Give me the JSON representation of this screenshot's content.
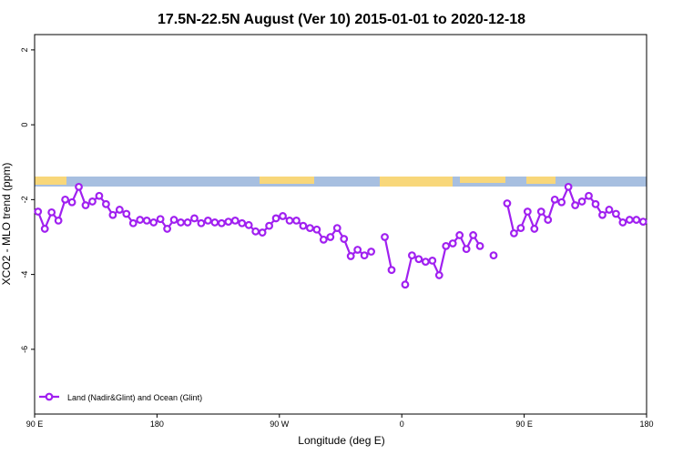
{
  "chart_data": {
    "type": "line",
    "title": "17.5N-22.5N August (Ver 10)   2015-01-01 to 2020-12-18",
    "xlabel": "Longitude (deg E)",
    "ylabel": "XCO2 - MLO trend (ppm)",
    "xlim": [
      90,
      540
    ],
    "ylim": [
      -7.73,
      2.41
    ],
    "xticks": [
      {
        "value": 90,
        "label": "90 E"
      },
      180,
      {
        "value": 270,
        "label": "90 W"
      },
      {
        "value": 360,
        "label": "0"
      },
      {
        "value": 450,
        "label": "90 E"
      },
      {
        "value": 540,
        "label": "180"
      }
    ],
    "yticks": [
      2,
      0,
      -2,
      -4,
      -6
    ],
    "legend": "bottom-left",
    "series": [
      {
        "name": "Land (Nadir&Glint) and Ocean (Glint)",
        "color": "#a020f0",
        "x": [
          92.5,
          97.5,
          102.5,
          107.5,
          112.5,
          117.5,
          122.5,
          127.5,
          132.5,
          137.5,
          142.5,
          147.5,
          152.5,
          157.5,
          162.5,
          167.5,
          172.5,
          177.5,
          182.5,
          187.5,
          192.5,
          197.5,
          202.5,
          207.5,
          212.5,
          217.5,
          222.5,
          227.5,
          232.5,
          237.5,
          242.5,
          247.5,
          252.5,
          257.5,
          262.5,
          267.5,
          272.5,
          277.5,
          282.5,
          287.5,
          292.5,
          297.5,
          302.5,
          307.5,
          312.5,
          317.5,
          322.5,
          327.5,
          332.5,
          337.5,
          342.5,
          347.5,
          352.5,
          357.5,
          362.5,
          367.5,
          372.5,
          377.5,
          382.5,
          387.5,
          392.5,
          397.5,
          402.5,
          407.5,
          412.5,
          417.5,
          422.5,
          427.5,
          432.5,
          437.5,
          442.5,
          447.5,
          452.5,
          457.5,
          462.5,
          467.5,
          472.5,
          477.5,
          482.5,
          487.5,
          492.5,
          497.5,
          502.5,
          507.5,
          512.5,
          517.5,
          522.5,
          527.5,
          532.5,
          537.5
        ],
        "values": [
          -2.32,
          -2.78,
          -2.34,
          -2.56,
          -2.0,
          -2.07,
          -1.66,
          -2.15,
          -2.05,
          -1.9,
          -2.12,
          -2.41,
          -2.27,
          -2.38,
          -2.63,
          -2.54,
          -2.56,
          -2.61,
          -2.52,
          -2.78,
          -2.54,
          -2.61,
          -2.61,
          -2.5,
          -2.63,
          -2.56,
          -2.61,
          -2.63,
          -2.59,
          -2.56,
          -2.63,
          -2.68,
          -2.85,
          -2.88,
          -2.7,
          -2.5,
          -2.44,
          -2.56,
          -2.56,
          -2.7,
          -2.76,
          -2.8,
          -3.07,
          -3.0,
          -2.76,
          -3.05,
          -3.51,
          -3.34,
          -3.49,
          -3.39,
          null,
          -3.0,
          -3.88,
          null,
          -4.27,
          -3.49,
          -3.59,
          -3.66,
          -3.63,
          -4.02,
          -3.24,
          -3.17,
          -2.95,
          -3.32,
          -2.95,
          -3.24,
          null,
          -3.49,
          null,
          -2.1,
          -2.9,
          -2.76,
          -2.32,
          -2.78,
          -2.32,
          -2.54,
          -2.0,
          -2.07,
          -1.66,
          -2.15,
          -2.05,
          -1.9,
          -2.12,
          -2.41,
          -2.27,
          -2.38,
          -2.61,
          -2.54,
          -2.54,
          -2.59
        ]
      }
    ]
  }
}
